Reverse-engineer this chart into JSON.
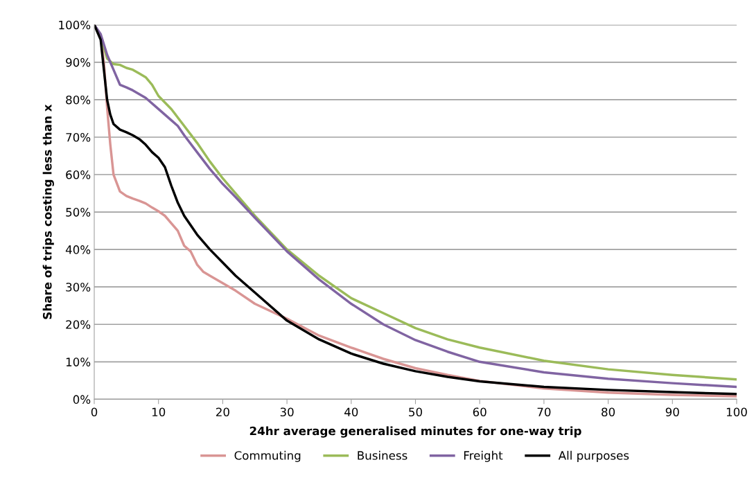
{
  "chart_data": {
    "type": "line",
    "xlabel": "24hr average generalised minutes for one-way trip",
    "ylabel": "Share of trips costing less than x",
    "xlim": [
      0,
      100
    ],
    "xticks": [
      0,
      10,
      20,
      30,
      40,
      50,
      60,
      70,
      80,
      90,
      100
    ],
    "ylim": [
      0,
      100
    ],
    "yticks": [
      {
        "value": 0,
        "label": "0%"
      },
      {
        "value": 10,
        "label": "10%"
      },
      {
        "value": 20,
        "label": "20%"
      },
      {
        "value": 30,
        "label": "30%"
      },
      {
        "value": 40,
        "label": "40%"
      },
      {
        "value": 50,
        "label": "50%"
      },
      {
        "value": 60,
        "label": "60%"
      },
      {
        "value": 70,
        "label": "70%"
      },
      {
        "value": 80,
        "label": "80%"
      },
      {
        "value": 90,
        "label": "90%"
      },
      {
        "value": 100,
        "label": "100%"
      }
    ],
    "grid": "y",
    "legend": "bottom",
    "marker": "none",
    "line_style": "solid",
    "series": [
      {
        "name": "Commuting",
        "color": "#d99594",
        "x": [
          0,
          1,
          1.5,
          2,
          2.5,
          3,
          4,
          5,
          6,
          7,
          8,
          9,
          10,
          11,
          12,
          13,
          14,
          15,
          16,
          17,
          18,
          20,
          22,
          25,
          30,
          35,
          40,
          45,
          50,
          55,
          60,
          70,
          80,
          90,
          100
        ],
        "values": [
          100,
          97,
          90,
          78,
          68,
          60,
          55.5,
          54.3,
          53.6,
          53,
          52.3,
          51.2,
          50.2,
          49,
          47,
          45,
          41,
          39.5,
          36,
          34,
          33,
          31,
          29,
          25.5,
          21.5,
          17,
          13.8,
          10.8,
          8.3,
          6.5,
          4.9,
          2.9,
          1.8,
          1.2,
          0.8
        ]
      },
      {
        "name": "Business",
        "color": "#9bbb59",
        "x": [
          0,
          1,
          2,
          3,
          4,
          5,
          6,
          7,
          8,
          9,
          10,
          12,
          14,
          16,
          18,
          20,
          22,
          25,
          30,
          35,
          40,
          45,
          50,
          55,
          60,
          70,
          80,
          90,
          100
        ],
        "values": [
          100,
          97,
          91,
          89.5,
          89.3,
          88.5,
          88,
          87,
          86,
          84,
          81,
          77.5,
          73,
          68.5,
          63.5,
          59,
          55,
          49,
          40,
          33,
          27,
          23,
          19,
          16,
          13.8,
          10.3,
          8,
          6.5,
          5.3
        ]
      },
      {
        "name": "Freight",
        "color": "#8064a2",
        "x": [
          0,
          1,
          2,
          3,
          4,
          5,
          6,
          8,
          10,
          12,
          13,
          14,
          16,
          18,
          20,
          22,
          25,
          30,
          35,
          40,
          45,
          50,
          55,
          60,
          70,
          80,
          90,
          100
        ],
        "values": [
          100,
          97.5,
          92,
          88,
          84,
          83.3,
          82.5,
          80.5,
          77.5,
          74.5,
          73,
          70.5,
          66,
          61.5,
          57.5,
          54,
          48.5,
          39.5,
          32,
          25.5,
          20,
          15.8,
          12.7,
          10,
          7.2,
          5.5,
          4.3,
          3.3
        ]
      },
      {
        "name": "All purposes",
        "color": "#000000",
        "x": [
          0,
          1,
          1.5,
          2,
          2.5,
          3,
          4,
          5,
          6,
          7,
          8,
          9,
          10,
          11,
          12,
          13,
          14,
          16,
          18,
          20,
          22,
          25,
          30,
          35,
          40,
          45,
          50,
          55,
          60,
          70,
          80,
          90,
          100
        ],
        "values": [
          100,
          96,
          88,
          80,
          76,
          73.5,
          72,
          71.3,
          70.5,
          69.5,
          68,
          66,
          64.5,
          62,
          57,
          52.5,
          49,
          44,
          40,
          36.5,
          33,
          28.5,
          21,
          16,
          12.2,
          9.5,
          7.5,
          6,
          4.8,
          3.3,
          2.5,
          1.9,
          1.4
        ]
      }
    ]
  }
}
